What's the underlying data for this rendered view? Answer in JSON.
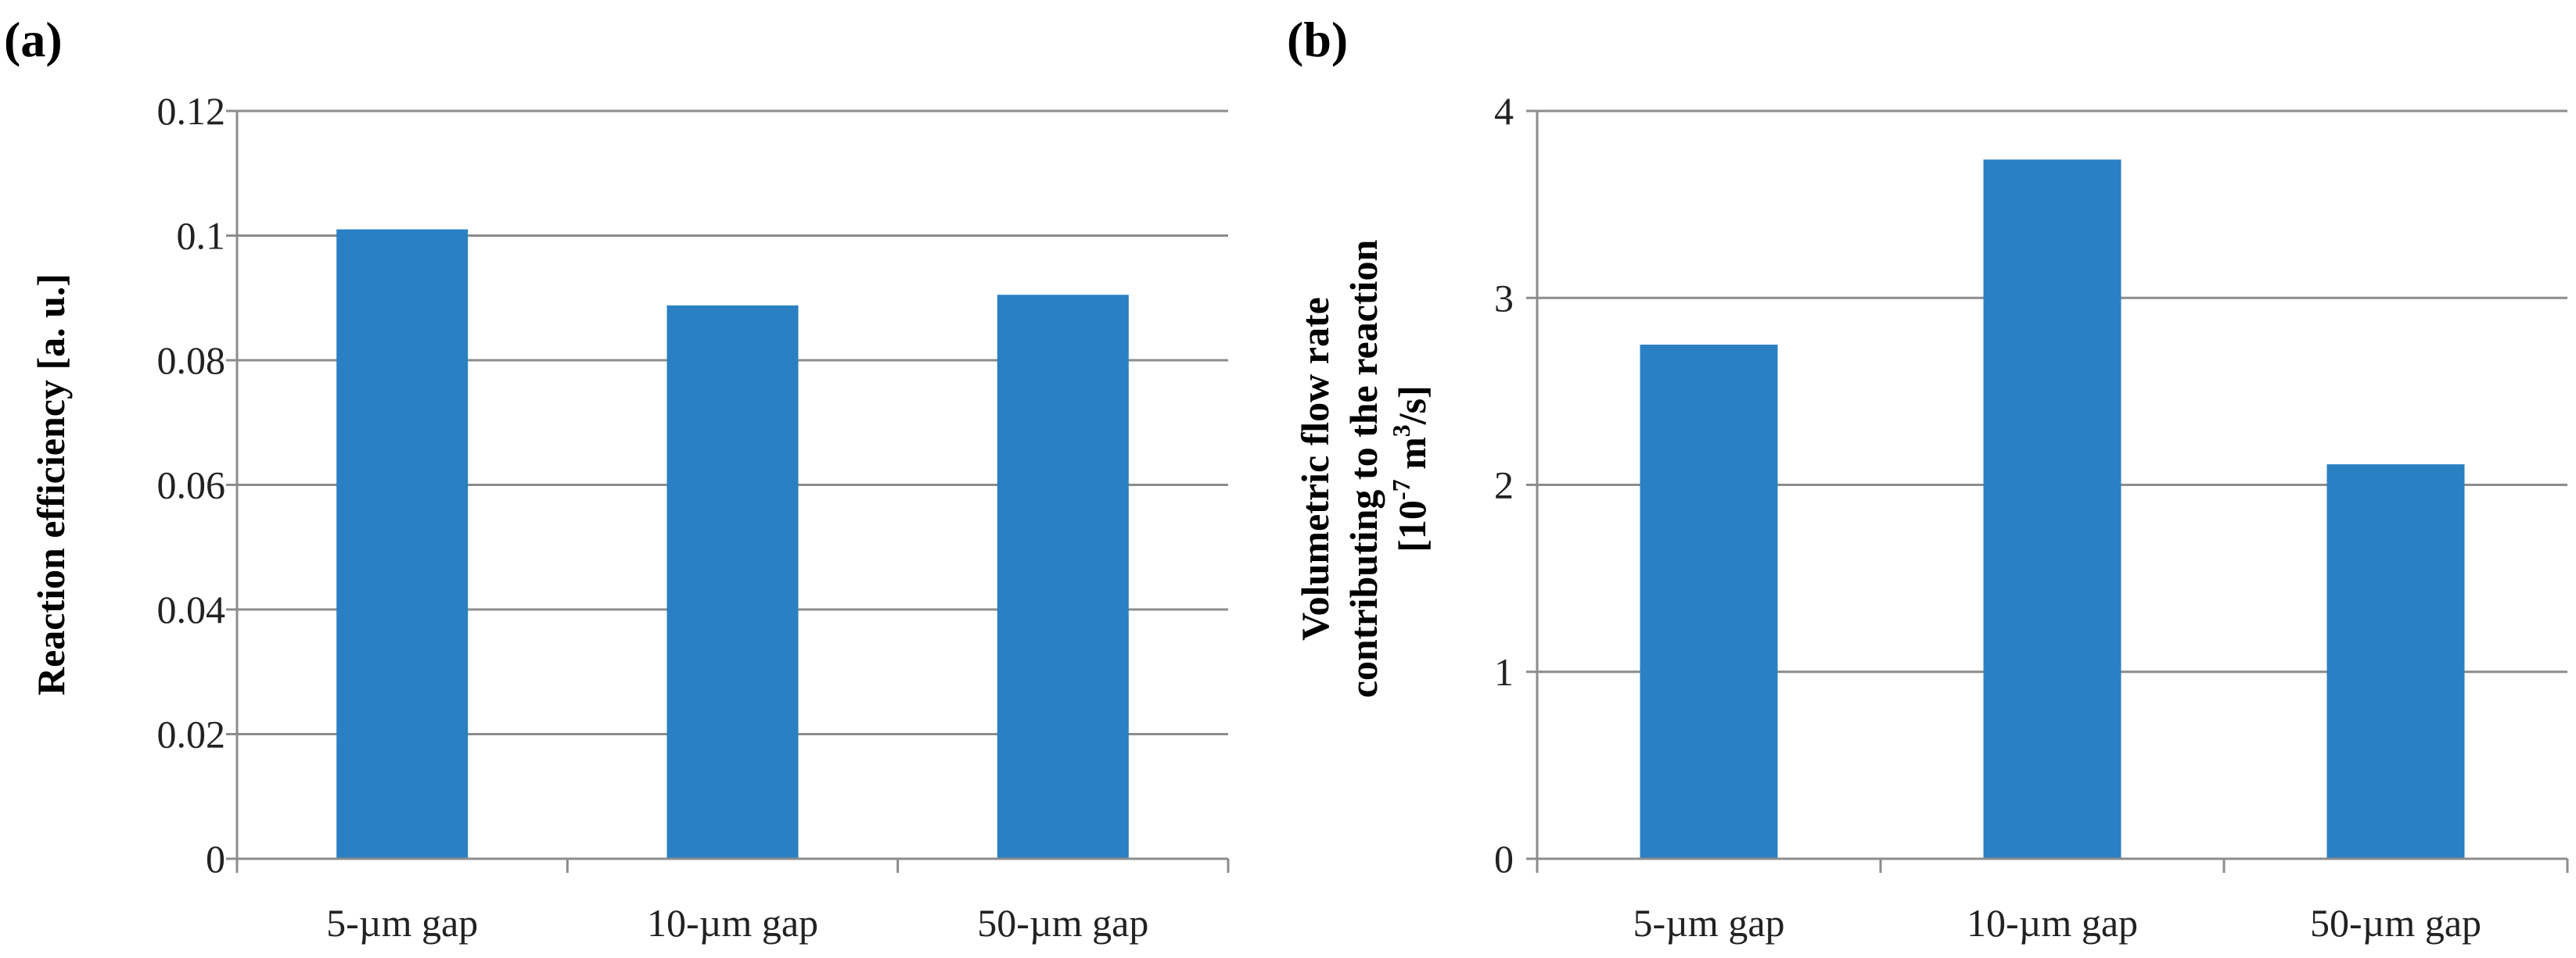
{
  "chart_data": [
    {
      "type": "bar",
      "panel_label": "(a)",
      "categories": [
        "5-µm gap",
        "10-µm gap",
        "50-µm gap"
      ],
      "values": [
        0.101,
        0.0888,
        0.0905
      ],
      "ylabel": "Reaction efficiency [a. u.]",
      "ylim": [
        0,
        0.12
      ],
      "yticks": [
        "0",
        "0.02",
        "0.04",
        "0.06",
        "0.08",
        "0.1",
        "0.12"
      ],
      "grid": true,
      "color": "#2a80c2"
    },
    {
      "type": "bar",
      "panel_label": "(b)",
      "categories": [
        "5-µm gap",
        "10-µm gap",
        "50-µm gap"
      ],
      "values": [
        2.75,
        3.74,
        2.11
      ],
      "ylabel_lines": [
        "Volumetric flow rate",
        "contributing to the reaction",
        "[10",
        "-7",
        " m",
        "3",
        "/s]"
      ],
      "ylim": [
        0,
        4
      ],
      "yticks": [
        "0",
        "1",
        "2",
        "3",
        "4"
      ],
      "grid": true,
      "color": "#2a80c2"
    }
  ]
}
